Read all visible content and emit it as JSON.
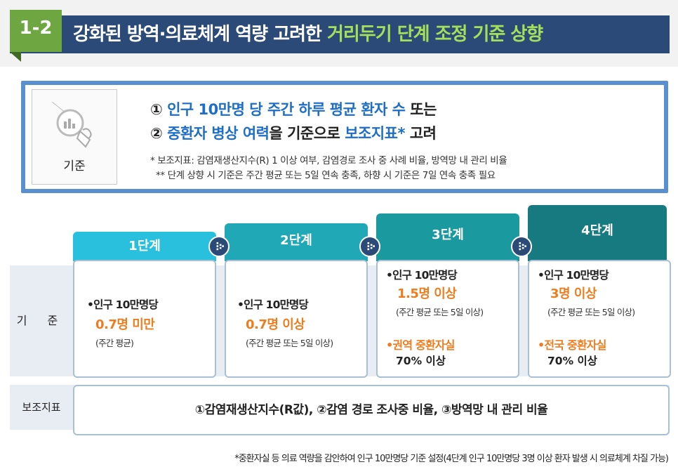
{
  "header": {
    "number": "1-2",
    "title_main": "강화된 방역·의료체계 역량 고려한 ",
    "title_highlight": "거리두기 단계 조정 기준 상향"
  },
  "criteria": {
    "label": "기준",
    "line1_marker": "① ",
    "line1_blue": "인구 10만명 당 주간 하루 평균 환자 수",
    "line1_rest": " 또는",
    "line2_marker": "② ",
    "line2_blue1": "중환자 병상 여력",
    "line2_mid": "을 기준으로 ",
    "line2_blue2": "보조지표*",
    "line2_rest": " 고려",
    "note1": "* 보조지표: 감염재생산지수(R) 1 이상 여부, 감염경로 조사 중 사례 비율, 방역망 내 관리 비율",
    "note2": "** 단계 상향 시 기준은 주간 평균 또는 5일 연속 충족, 하향 시 기준은 7일 연속 충족 필요"
  },
  "table": {
    "row_label_criteria": "기 준",
    "row_label_aux": "보조지표",
    "stages": [
      {
        "name": "1단계",
        "point": "•인구 10만명당",
        "value": "0.7명 미만",
        "detail": "(주간 평균)",
        "extra_point": "",
        "extra_value": ""
      },
      {
        "name": "2단계",
        "point": "•인구 10만명당",
        "value": "0.7명 이상",
        "detail": "(주간 평균 또는 5일 이상)",
        "extra_point": "",
        "extra_value": ""
      },
      {
        "name": "3단계",
        "point": "•인구 10만명당",
        "value": "1.5명 이상",
        "detail": "(주간 평균 또는 5일 이상)",
        "extra_point": "•권역 중환자실",
        "extra_value": "70% 이상"
      },
      {
        "name": "4단계",
        "point": "•인구 10만명당",
        "value": "3명 이상",
        "detail": "(주간 평균 또는 5일 이상)",
        "extra_point": "•전국 중환자실",
        "extra_value": "70% 이상"
      }
    ],
    "aux_text": "①감염재생산지수(R값), ②감염 경로 조사중 비율, ③방역망 내 관리 비율"
  },
  "footnote": "*중환자실 등 의료 역량을 감안하여 인구 10만명당 기준 설정(4단계 인구 10만명당 3명 이상 환자 발생 시 의료체계 차질 가능)",
  "colors": {
    "header_bar": "#2c4a78",
    "badge": "#6ea641",
    "highlight": "#a6e05a",
    "blue_text": "#1e6ec8",
    "orange_text": "#ee7d1f",
    "stage1": "#28c0dc",
    "stage2": "#21a8b6",
    "stage3": "#1a9a9e",
    "stage4": "#177a80"
  },
  "icons": [
    "chart-magnifier-icon",
    "chevron-right-icon"
  ]
}
